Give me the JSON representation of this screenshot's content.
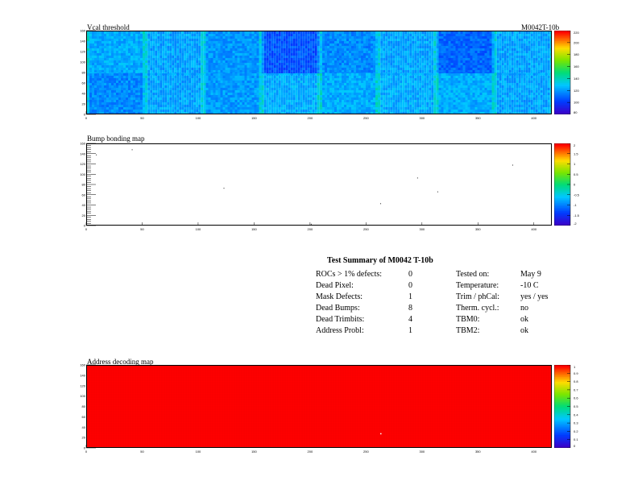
{
  "module_id": "M0042T-10b",
  "panels": [
    {
      "title": "Vcal threshold",
      "palette_ticks": [
        "80",
        "100",
        "120",
        "140",
        "160",
        "180",
        "200",
        "220"
      ]
    },
    {
      "title": "Bump bonding map",
      "palette_ticks": [
        "-2",
        "-1.5",
        "-1",
        "-0.5",
        "0",
        "0.5",
        "1",
        "1.5",
        "2"
      ]
    },
    {
      "title": "Address decoding map",
      "palette_ticks": [
        "0",
        "0.1",
        "0.2",
        "0.3",
        "0.4",
        "0.5",
        "0.6",
        "0.7",
        "0.8",
        "0.9",
        "1"
      ]
    }
  ],
  "summary": {
    "heading": "Test Summary of M0042     T-10b",
    "left_labels": [
      "ROCs > 1% defects:",
      "Dead Pixel:",
      "Mask Defects:",
      "Dead Bumps:",
      "Dead Trimbits:",
      "Address Probl:"
    ],
    "left_values": [
      "0",
      "0",
      "1",
      "8",
      "4",
      "1"
    ],
    "right_labels": [
      "Tested on:",
      "Temperature:",
      "Trim / phCal:",
      "Therm. cycl.:",
      "TBM0:",
      "TBM2:"
    ],
    "right_values": [
      "May 9",
      "-10 C",
      "yes / yes",
      "no",
      "ok",
      "ok"
    ]
  },
  "chart_data": [
    {
      "type": "heatmap",
      "title": "Vcal threshold",
      "x_ticks": [
        "0",
        "50",
        "100",
        "150",
        "200",
        "250",
        "300",
        "350",
        "400"
      ],
      "y_ticks": [
        "0",
        "20",
        "40",
        "60",
        "80",
        "100",
        "120",
        "140",
        "160"
      ],
      "xlim": [
        0,
        416
      ],
      "ylim": [
        0,
        160
      ],
      "zlim": [
        70,
        230
      ],
      "roc_grid": {
        "cols": 8,
        "rows": 2
      },
      "roc_mean_vcal": {
        "top": [
          120,
          118,
          115,
          100,
          112,
          118,
          104,
          118
        ],
        "bottom": [
          112,
          118,
          116,
          120,
          120,
          120,
          120,
          118
        ]
      }
    },
    {
      "type": "heatmap",
      "title": "Bump bonding map",
      "x_ticks": [
        "0",
        "50",
        "100",
        "150",
        "200",
        "250",
        "300",
        "350",
        "400"
      ],
      "y_ticks": [
        "0",
        "20",
        "40",
        "60",
        "80",
        "100",
        "120",
        "140",
        "160"
      ],
      "xlim": [
        0,
        416
      ],
      "ylim": [
        0,
        160
      ],
      "zlim": [
        -2,
        2
      ],
      "dead_bumps": [
        [
          40,
          150
        ],
        [
          122,
          75
        ],
        [
          262,
          45
        ],
        [
          295,
          95
        ],
        [
          313,
          68
        ],
        [
          8,
          140
        ],
        [
          200,
          5
        ],
        [
          380,
          120
        ]
      ]
    },
    {
      "type": "heatmap",
      "title": "Address decoding map",
      "x_ticks": [
        "0",
        "50",
        "100",
        "150",
        "200",
        "250",
        "300",
        "350",
        "400"
      ],
      "y_ticks": [
        "0",
        "20",
        "40",
        "60",
        "80",
        "100",
        "120",
        "140",
        "160"
      ],
      "xlim": [
        0,
        416
      ],
      "ylim": [
        0,
        160
      ],
      "zlim": [
        0,
        1
      ],
      "uniform_value": 1,
      "bad_pixels": [
        [
          262,
          30
        ]
      ]
    }
  ]
}
